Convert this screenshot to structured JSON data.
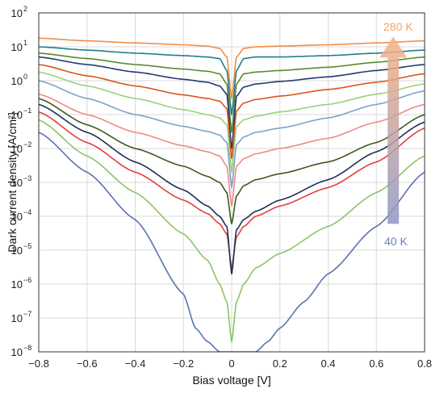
{
  "chart_data": {
    "type": "line",
    "title": "",
    "xlabel": "Bias voltage [V]",
    "ylabel": "Dark current density [A/cm²]",
    "xlim": [
      -0.8,
      0.8
    ],
    "ylim_log10": [
      -8,
      2
    ],
    "yscale": "log",
    "grid": true,
    "legend": "none",
    "xticks": [
      {
        "v": -0.8,
        "label": "−0.8"
      },
      {
        "v": -0.6,
        "label": "−0.6"
      },
      {
        "v": -0.4,
        "label": "−0.4"
      },
      {
        "v": -0.2,
        "label": "−0.2"
      },
      {
        "v": 0.0,
        "label": "0"
      },
      {
        "v": 0.2,
        "label": "0.2"
      },
      {
        "v": 0.4,
        "label": "0.4"
      },
      {
        "v": 0.6,
        "label": "0.6"
      },
      {
        "v": 0.8,
        "label": "0.8"
      }
    ],
    "yticks": [
      {
        "p": -8,
        "base": "10",
        "exp": "−8"
      },
      {
        "p": -7,
        "base": "10",
        "exp": "−7"
      },
      {
        "p": -6,
        "base": "10",
        "exp": "−6"
      },
      {
        "p": -5,
        "base": "10",
        "exp": "−5"
      },
      {
        "p": -4,
        "base": "10",
        "exp": "−4"
      },
      {
        "p": -3,
        "base": "10",
        "exp": "−3"
      },
      {
        "p": -2,
        "base": "10",
        "exp": "−2"
      },
      {
        "p": -1,
        "base": "10",
        "exp": "−1"
      },
      {
        "p": 0,
        "base": "10",
        "exp": "0"
      },
      {
        "p": 1,
        "base": "10",
        "exp": "1"
      },
      {
        "p": 2,
        "base": "10",
        "exp": "2"
      }
    ],
    "annotations": {
      "high": {
        "text": "280 K",
        "color": "#f4a36b"
      },
      "low": {
        "text": "40 K",
        "color": "#6f7fb8"
      }
    },
    "arrow": {
      "x": 0.67,
      "y_from": 6e-05,
      "y_to": 20,
      "color_top": "#f7b184",
      "color_bottom": "#8f97c4"
    },
    "series": [
      {
        "color": "#f28c45",
        "x": [
          -0.8,
          -0.6,
          -0.4,
          -0.2,
          -0.1,
          -0.05,
          -0.02,
          0.0,
          0.02,
          0.05,
          0.1,
          0.2,
          0.4,
          0.6,
          0.8
        ],
        "y": [
          18,
          15,
          13,
          11.5,
          10.5,
          9,
          5,
          0.3,
          5,
          9,
          10,
          10.5,
          11.5,
          13,
          15
        ]
      },
      {
        "color": "#1f7d8a",
        "x": [
          -0.8,
          -0.6,
          -0.4,
          -0.2,
          -0.1,
          -0.05,
          -0.02,
          0.0,
          0.02,
          0.05,
          0.1,
          0.2,
          0.4,
          0.6,
          0.8
        ],
        "y": [
          10,
          8,
          6.5,
          5.5,
          5,
          4.5,
          2,
          0.1,
          2,
          4.5,
          5,
          5,
          5.5,
          6.5,
          8
        ]
      },
      {
        "color": "#5a8a2e",
        "x": [
          -0.8,
          -0.6,
          -0.4,
          -0.2,
          -0.1,
          -0.05,
          -0.02,
          0.0,
          0.02,
          0.05,
          0.1,
          0.2,
          0.4,
          0.6,
          0.8
        ],
        "y": [
          6.5,
          4.5,
          3,
          2.2,
          1.9,
          1.6,
          0.8,
          0.03,
          0.8,
          1.6,
          1.8,
          2,
          2.5,
          3.5,
          5
        ]
      },
      {
        "color": "#1e3a6e",
        "x": [
          -0.8,
          -0.6,
          -0.4,
          -0.2,
          -0.1,
          -0.05,
          -0.02,
          0.0,
          0.02,
          0.05,
          0.1,
          0.2,
          0.4,
          0.6,
          0.8
        ],
        "y": [
          5,
          3,
          1.8,
          1.1,
          0.9,
          0.7,
          0.4,
          0.01,
          0.35,
          0.65,
          0.8,
          0.95,
          1.3,
          2,
          3
        ]
      },
      {
        "color": "#d9541c",
        "x": [
          -0.8,
          -0.6,
          -0.4,
          -0.2,
          -0.1,
          -0.05,
          -0.02,
          0.0,
          0.02,
          0.05,
          0.1,
          0.2,
          0.4,
          0.6,
          0.8
        ],
        "y": [
          3,
          1.4,
          0.7,
          0.38,
          0.3,
          0.25,
          0.15,
          0.005,
          0.13,
          0.22,
          0.28,
          0.35,
          0.55,
          0.9,
          1.6
        ]
      },
      {
        "color": "#9bd17a",
        "x": [
          -0.8,
          -0.6,
          -0.4,
          -0.2,
          -0.1,
          -0.05,
          -0.02,
          0.0,
          0.02,
          0.05,
          0.1,
          0.2,
          0.4,
          0.6,
          0.8
        ],
        "y": [
          1.8,
          0.7,
          0.3,
          0.14,
          0.1,
          0.08,
          0.05,
          0.002,
          0.045,
          0.07,
          0.09,
          0.12,
          0.2,
          0.4,
          0.8
        ]
      },
      {
        "color": "#7fa1c9",
        "x": [
          -0.8,
          -0.6,
          -0.4,
          -0.2,
          -0.1,
          -0.05,
          -0.02,
          0.0,
          0.02,
          0.05,
          0.1,
          0.2,
          0.4,
          0.6,
          0.8
        ],
        "y": [
          1.0,
          0.3,
          0.1,
          0.045,
          0.032,
          0.025,
          0.015,
          0.0007,
          0.013,
          0.022,
          0.03,
          0.04,
          0.08,
          0.2,
          0.5
        ]
      },
      {
        "color": "#f08a86",
        "x": [
          -0.8,
          -0.6,
          -0.4,
          -0.2,
          -0.1,
          -0.05,
          -0.02,
          0.0,
          0.02,
          0.05,
          0.1,
          0.2,
          0.4,
          0.6,
          0.8
        ],
        "y": [
          0.4,
          0.1,
          0.03,
          0.012,
          0.008,
          0.006,
          0.003,
          0.0002,
          0.003,
          0.005,
          0.007,
          0.01,
          0.02,
          0.06,
          0.2
        ]
      },
      {
        "color": "#3d5a1c",
        "x": [
          -0.8,
          -0.6,
          -0.4,
          -0.2,
          -0.1,
          -0.05,
          -0.02,
          0.0,
          0.02,
          0.05,
          0.1,
          0.2,
          0.4,
          0.6,
          0.8
        ],
        "y": [
          0.3,
          0.05,
          0.01,
          0.003,
          0.0015,
          0.001,
          0.0005,
          6e-05,
          0.0004,
          0.0008,
          0.0012,
          0.0018,
          0.004,
          0.015,
          0.1
        ]
      },
      {
        "color": "#e0403d",
        "x": [
          -0.8,
          -0.6,
          -0.4,
          -0.2,
          -0.1,
          -0.05,
          -0.02,
          0.0,
          0.02,
          0.05,
          0.1,
          0.2,
          0.4,
          0.6,
          0.8
        ],
        "y": [
          0.12,
          0.015,
          0.002,
          0.0003,
          0.00012,
          6e-05,
          3e-05,
          3e-06,
          2.5e-05,
          5e-05,
          0.0001,
          0.0002,
          0.0007,
          0.004,
          0.04
        ]
      },
      {
        "color": "#1b2f55",
        "x": [
          -0.8,
          -0.6,
          -0.4,
          -0.2,
          -0.1,
          -0.05,
          -0.02,
          0.0,
          0.02,
          0.05,
          0.1,
          0.2,
          0.4,
          0.6,
          0.8
        ],
        "y": [
          0.2,
          0.03,
          0.004,
          0.0006,
          0.0002,
          0.0001,
          5e-05,
          2e-06,
          4e-05,
          8e-05,
          0.00014,
          0.0003,
          0.0012,
          0.008,
          0.06
        ]
      },
      {
        "color": "#8cc46a",
        "x": [
          -0.8,
          -0.6,
          -0.4,
          -0.2,
          -0.1,
          -0.05,
          -0.02,
          0.0,
          0.02,
          0.05,
          0.1,
          0.2,
          0.4,
          0.6,
          0.8
        ],
        "y": [
          0.07,
          0.006,
          0.0005,
          3e-05,
          5e-06,
          1e-06,
          3e-07,
          2e-08,
          3e-07,
          1e-06,
          3e-06,
          8e-06,
          5e-05,
          0.0005,
          0.006
        ]
      },
      {
        "color": "#5b72b0",
        "x": [
          -0.8,
          -0.6,
          -0.4,
          -0.2,
          -0.15,
          -0.1,
          -0.05,
          0.0,
          0.05,
          0.1,
          0.15,
          0.2,
          0.3,
          0.4,
          0.6,
          0.8
        ],
        "y": [
          0.03,
          0.002,
          8e-05,
          5e-07,
          5e-08,
          2e-08,
          1e-08,
          1e-08,
          1e-08,
          1e-08,
          2e-08,
          5e-08,
          3e-07,
          2e-06,
          5e-05,
          0.002
        ]
      }
    ]
  }
}
